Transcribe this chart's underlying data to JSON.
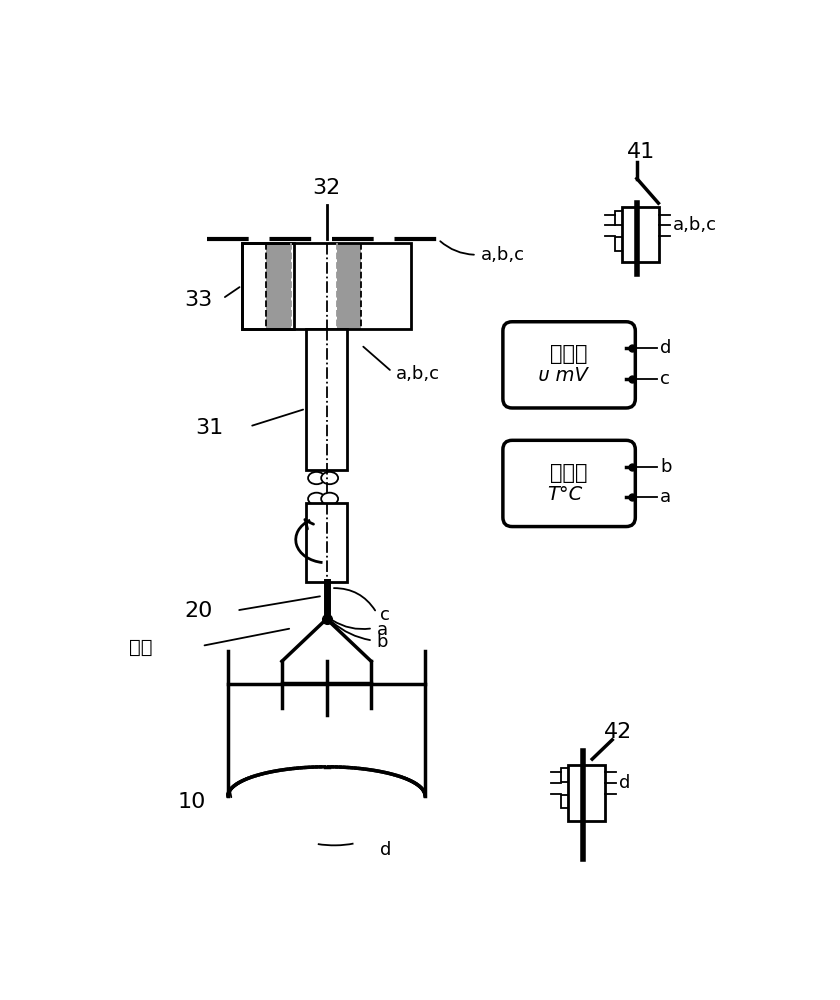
{
  "bg_color": "#ffffff",
  "line_color": "#000000",
  "gray_color": "#999999",
  "fig_width": 8.4,
  "fig_height": 10.0,
  "labels": {
    "label_32": "32",
    "label_33": "33",
    "label_31": "31",
    "label_20": "20",
    "label_10": "10",
    "label_41": "41",
    "label_42": "42",
    "label_sijing": "籽晶",
    "label_abc_top": "a,b,c",
    "label_abc_mid": "a,b,c",
    "label_abc_right41": "a,b,c",
    "label_c": "c",
    "label_a": "a",
    "label_b": "b",
    "label_d_bot": "d",
    "label_d_right42": "d",
    "voltmeter_text1": "电压计",
    "voltmeter_text2": "ᴜ mV",
    "voltmeter_d": "d",
    "voltmeter_c": "c",
    "thermometer_text1": "温度表",
    "thermometer_text2": "T°C",
    "thermometer_b": "b",
    "thermometer_a": "a"
  }
}
